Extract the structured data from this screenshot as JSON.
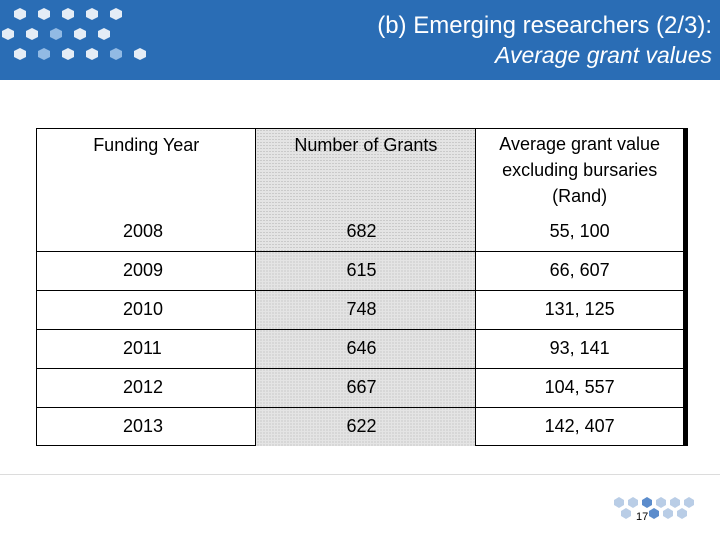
{
  "header": {
    "title_line1": "(b) Emerging researchers (2/3):",
    "title_line2": "Average grant values",
    "background_color": "#2a6db5"
  },
  "table": {
    "columns": [
      "Funding Year",
      "Number of Grants",
      "Average grant value excluding bursaries (Rand)"
    ],
    "rows": [
      {
        "year": "2008",
        "grants": "682",
        "average": "55, 100"
      },
      {
        "year": "2009",
        "grants": "615",
        "average": "66, 607"
      },
      {
        "year": "2010",
        "grants": "748",
        "average": "131, 125"
      },
      {
        "year": "2011",
        "grants": "646",
        "average": "93, 141"
      },
      {
        "year": "2012",
        "grants": "667",
        "average": "104, 557"
      },
      {
        "year": "2013",
        "grants": "622",
        "average": "142, 407"
      }
    ]
  },
  "footer": {
    "page_number": "17"
  }
}
